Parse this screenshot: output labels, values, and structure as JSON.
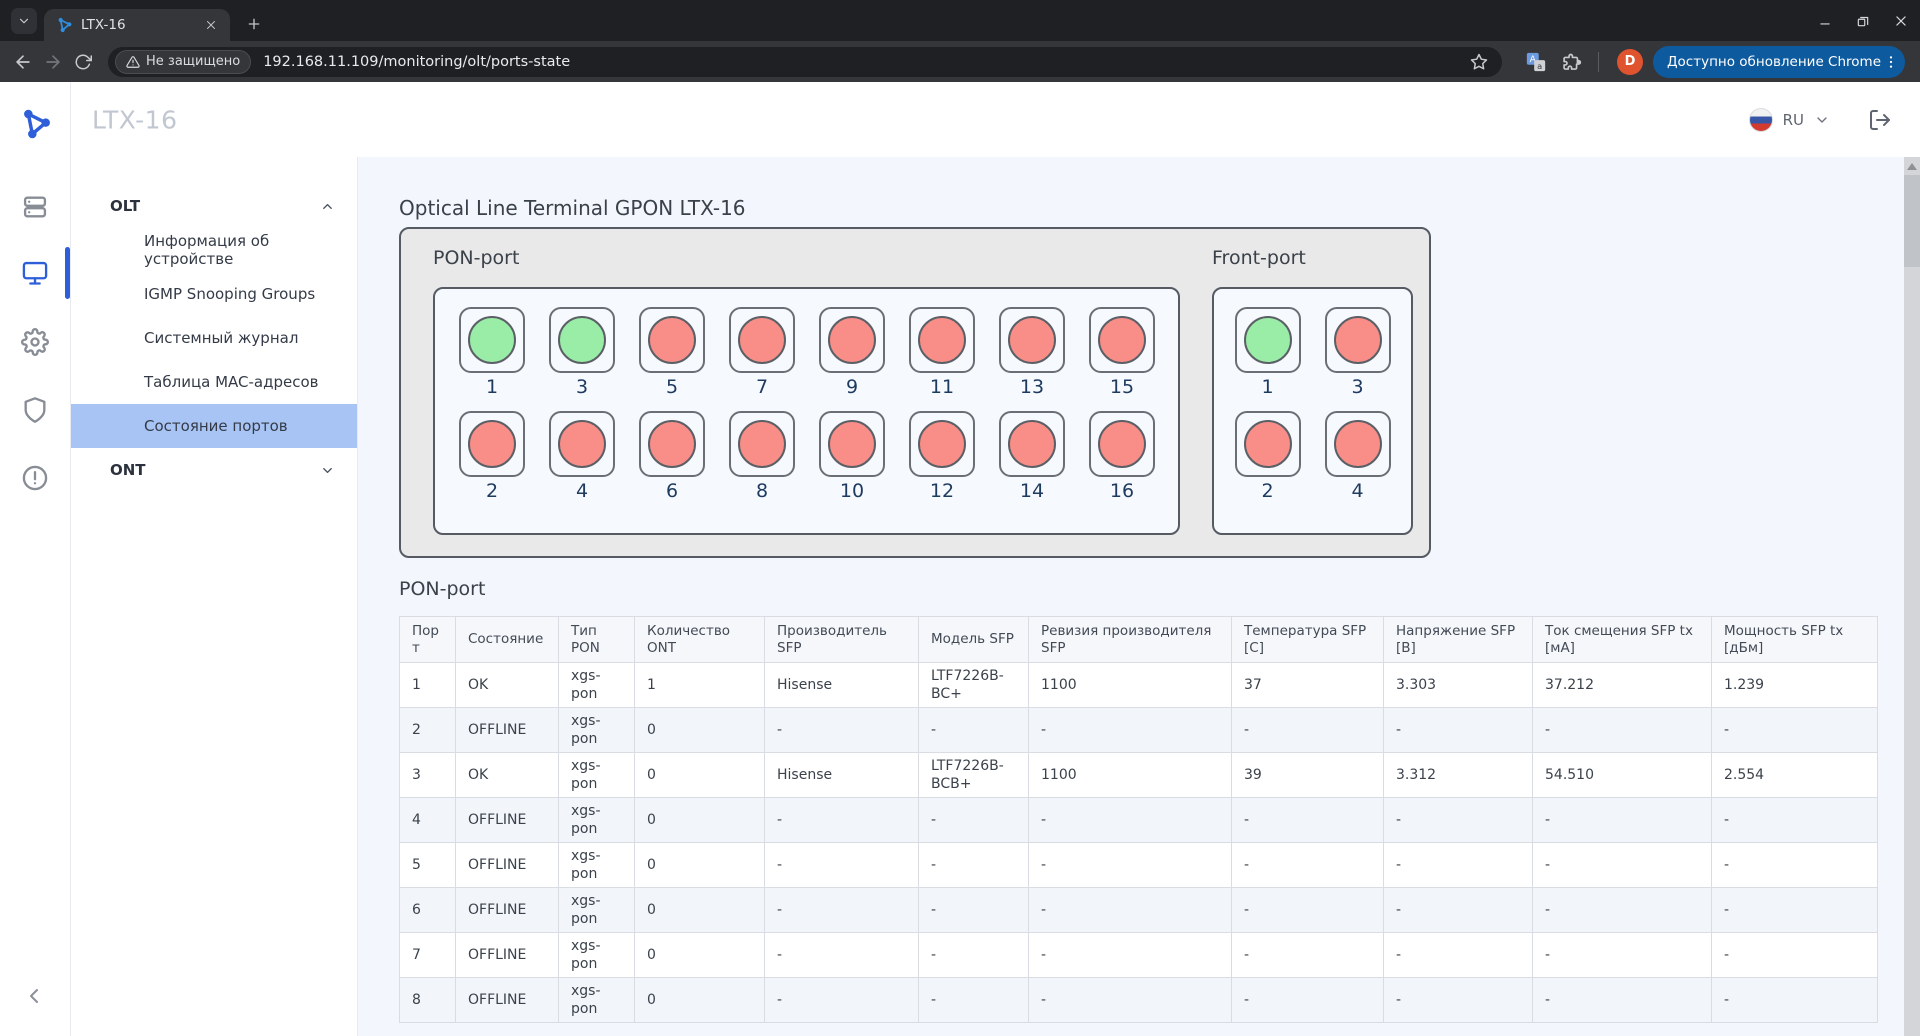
{
  "browser": {
    "tab_title": "LTX-16",
    "security_chip": "Не защищено",
    "url": "192.168.11.109/monitoring/olt/ports-state",
    "profile_initial": "D",
    "update_button": "Доступно обновление Chrome"
  },
  "header": {
    "title": "LTX-16",
    "language": "RU"
  },
  "sidebar": {
    "groups": [
      {
        "label": "OLT",
        "expanded": true,
        "items": [
          "Информация об устройстве",
          "IGMP Snooping Groups",
          "Системный журнал",
          "Таблица MAC-адресов",
          "Состояние портов"
        ],
        "active_item": "Состояние портов"
      },
      {
        "label": "ONT",
        "expanded": false,
        "items": []
      }
    ]
  },
  "main": {
    "page_title": "Optical Line Terminal GPON LTX-16",
    "device_panels": {
      "pon": {
        "label": "PON-port",
        "rows": [
          [
            {
              "num": "1",
              "state": "up"
            },
            {
              "num": "3",
              "state": "up"
            },
            {
              "num": "5",
              "state": "down"
            },
            {
              "num": "7",
              "state": "down"
            },
            {
              "num": "9",
              "state": "down"
            },
            {
              "num": "11",
              "state": "down"
            },
            {
              "num": "13",
              "state": "down"
            },
            {
              "num": "15",
              "state": "down"
            }
          ],
          [
            {
              "num": "2",
              "state": "down"
            },
            {
              "num": "4",
              "state": "down"
            },
            {
              "num": "6",
              "state": "down"
            },
            {
              "num": "8",
              "state": "down"
            },
            {
              "num": "10",
              "state": "down"
            },
            {
              "num": "12",
              "state": "down"
            },
            {
              "num": "14",
              "state": "down"
            },
            {
              "num": "16",
              "state": "down"
            }
          ]
        ]
      },
      "front": {
        "label": "Front-port",
        "rows": [
          [
            {
              "num": "1",
              "state": "up"
            },
            {
              "num": "3",
              "state": "down"
            }
          ],
          [
            {
              "num": "2",
              "state": "down"
            },
            {
              "num": "4",
              "state": "down"
            }
          ]
        ]
      }
    },
    "table_section_title": "PON-port",
    "table": {
      "headers": [
        "Порт",
        "Состояние",
        "Тип PON",
        "Количество ONT",
        "Производитель SFP",
        "Модель SFP",
        "Ревизия производителя SFP",
        "Температура SFP [C]",
        "Напряжение SFP [B]",
        "Ток смещения SFP tx [мА]",
        "Мощность SFP tx [дБм]"
      ],
      "rows": [
        [
          "1",
          "OK",
          "xgs-pon",
          "1",
          "Hisense",
          "LTF7226B-BC+",
          "1100",
          "37",
          "3.303",
          "37.212",
          "1.239"
        ],
        [
          "2",
          "OFFLINE",
          "xgs-pon",
          "0",
          "-",
          "-",
          "-",
          "-",
          "-",
          "-",
          "-"
        ],
        [
          "3",
          "OK",
          "xgs-pon",
          "0",
          "Hisense",
          "LTF7226B-BCB+",
          "1100",
          "39",
          "3.312",
          "54.510",
          "2.554"
        ],
        [
          "4",
          "OFFLINE",
          "xgs-pon",
          "0",
          "-",
          "-",
          "-",
          "-",
          "-",
          "-",
          "-"
        ],
        [
          "5",
          "OFFLINE",
          "xgs-pon",
          "0",
          "-",
          "-",
          "-",
          "-",
          "-",
          "-",
          "-"
        ],
        [
          "6",
          "OFFLINE",
          "xgs-pon",
          "0",
          "-",
          "-",
          "-",
          "-",
          "-",
          "-",
          "-"
        ],
        [
          "7",
          "OFFLINE",
          "xgs-pon",
          "0",
          "-",
          "-",
          "-",
          "-",
          "-",
          "-",
          "-"
        ],
        [
          "8",
          "OFFLINE",
          "xgs-pon",
          "0",
          "-",
          "-",
          "-",
          "-",
          "-",
          "-",
          "-"
        ]
      ]
    }
  },
  "colors": {
    "accent_blue": "#2e5fd9",
    "port_up_green": "#9aeda6",
    "port_down_red": "#f98e88",
    "selected_menu": "#a7c4f4",
    "update_button_bg": "#0e5a9e",
    "avatar_bg": "#e0532f"
  }
}
